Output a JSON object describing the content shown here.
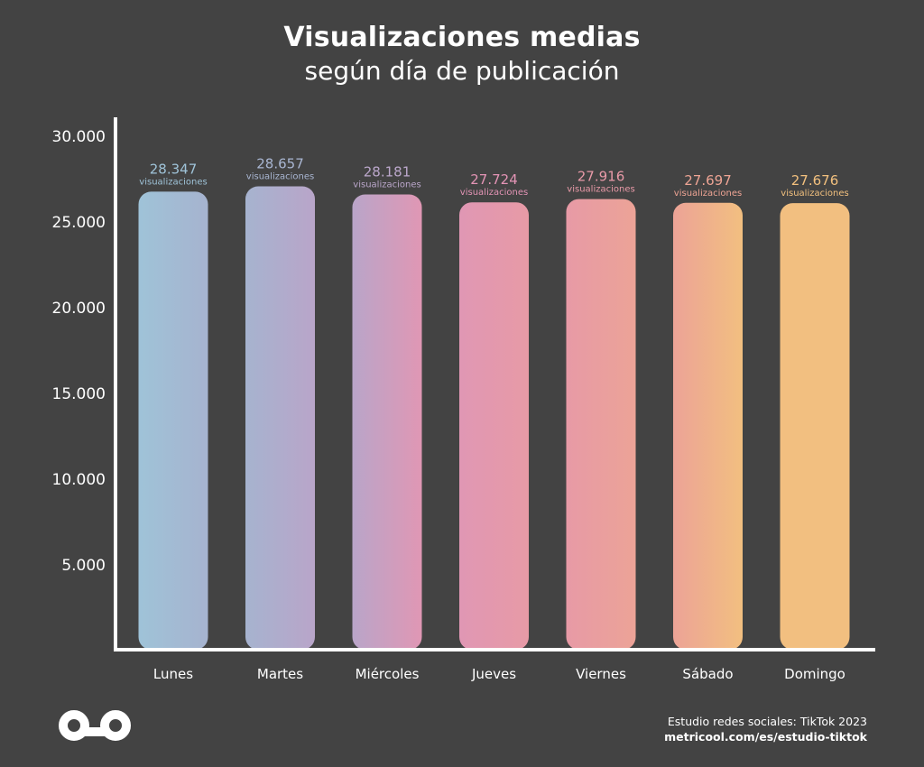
{
  "header": {
    "title": "Visualizaciones medias",
    "subtitle": "según día de publicación"
  },
  "chart_data": {
    "type": "bar",
    "categories": [
      "Lunes",
      "Martes",
      "Miércoles",
      "Jueves",
      "Viernes",
      "Sábado",
      "Domingo"
    ],
    "values": [
      28347,
      28657,
      28181,
      27724,
      27916,
      27697,
      27676
    ],
    "value_labels": [
      "28.347",
      "28.657",
      "28.181",
      "27.724",
      "27.916",
      "27.697",
      "27.676"
    ],
    "value_unit": "visualizaciones",
    "y_ticks": [
      5000,
      10000,
      15000,
      20000,
      25000,
      30000
    ],
    "y_tick_labels": [
      "5.000",
      "10.000",
      "15.000",
      "20.000",
      "25.000",
      "30.000"
    ],
    "ylim": [
      0,
      30000
    ],
    "grid": false,
    "legend": "none",
    "bar_colors": [
      "#9fc3d8",
      "#a6b3cf",
      "#b9a5c9",
      "#e097b4",
      "#e79aa6",
      "#eca397",
      "#f2bf80"
    ],
    "label_colors": [
      "#9fc3d8",
      "#a9b6d2",
      "#bba7cb",
      "#e394b5",
      "#e99aa8",
      "#eea494",
      "#f2c07e"
    ]
  },
  "footer": {
    "study": "Estudio redes sociales: TikTok 2023",
    "url": "metricool.com/es/estudio-tiktok"
  },
  "logo": {
    "icon": "metricool-infinity-logo"
  }
}
